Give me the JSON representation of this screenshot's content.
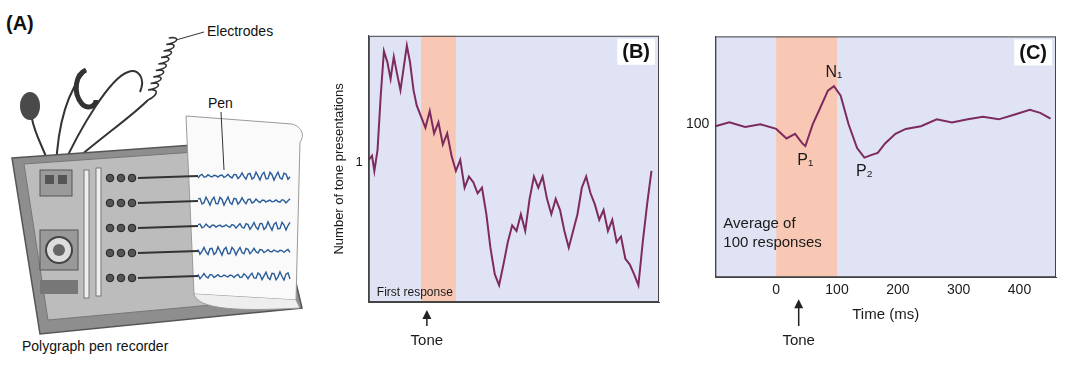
{
  "panel_a": {
    "letter": "(A)",
    "labels": {
      "electrodes": "Electrodes",
      "pen": "Pen"
    },
    "caption": "Polygraph pen recorder"
  },
  "chart_data": [
    {
      "panel": "(B)",
      "type": "line",
      "y_label": "Number of tone presentations",
      "x": [
        0,
        1.1,
        1.9,
        3,
        4.1,
        5.2,
        6.4,
        7.5,
        8.6,
        9.7,
        10.9,
        12,
        13.1,
        14.2,
        15.4,
        16.5,
        18,
        19.5,
        21,
        22.5,
        24,
        25.5,
        27,
        28.5,
        30,
        31.5,
        33,
        34.5,
        36,
        37.5,
        39,
        40.5,
        41.9,
        43.4,
        44.9,
        46.4,
        47.9,
        49.4,
        50.9,
        52.4,
        53.9,
        55.4,
        56.9,
        58.4,
        59.9,
        61.4,
        62.9,
        64.4,
        65.9,
        67.4,
        68.9,
        70.4,
        71.9,
        73.4,
        74.9,
        76.4,
        77.9,
        79.4,
        80.9,
        82.4,
        83.9,
        85.4,
        86.9,
        88.4,
        89.9,
        91.4,
        92.9,
        94.4,
        95.9,
        97.4
      ],
      "values": [
        1.02,
        1.05,
        0.94,
        1.09,
        1.48,
        1.8,
        1.72,
        1.6,
        1.76,
        1.64,
        1.52,
        1.68,
        1.84,
        1.72,
        1.52,
        1.41,
        1.33,
        1.25,
        1.37,
        1.21,
        1.29,
        1.13,
        1.21,
        1.05,
        0.94,
        1.02,
        0.82,
        0.9,
        0.86,
        0.78,
        0.82,
        0.63,
        0.39,
        0.2,
        0.12,
        0.27,
        0.43,
        0.55,
        0.51,
        0.63,
        0.51,
        0.74,
        0.9,
        0.82,
        0.9,
        0.74,
        0.63,
        0.74,
        0.66,
        0.51,
        0.39,
        0.51,
        0.63,
        0.82,
        0.9,
        0.78,
        0.7,
        0.59,
        0.66,
        0.51,
        0.59,
        0.43,
        0.47,
        0.31,
        0.27,
        0.2,
        0.12,
        0.43,
        0.7,
        0.94
      ],
      "color": "#7d2b5f",
      "xlim": [
        0,
        100
      ],
      "xticks": [],
      "ylim": [
        0,
        1.91
      ],
      "yticks": [
        1
      ],
      "tick_labels": "y",
      "grid": false,
      "note": [
        "First response"
      ],
      "shaded": [
        18,
        30
      ],
      "tone": {
        "label": "Tone",
        "at": 20
      }
    },
    {
      "panel": "(C)",
      "type": "line",
      "x_label": "Time (ms)",
      "x": [
        -100,
        -77,
        -51,
        -26,
        0,
        17,
        31,
        43,
        48,
        60,
        71,
        85,
        95,
        106,
        119,
        133,
        145,
        157,
        167,
        179,
        196,
        213,
        238,
        264,
        289,
        315,
        340,
        366,
        391,
        417,
        434,
        451
      ],
      "values": [
        99.5,
        100.5,
        99.3,
        100,
        98.8,
        96.3,
        97.5,
        95,
        94.3,
        100,
        103.8,
        108.8,
        110,
        107.5,
        100,
        93.8,
        91.3,
        92,
        92.5,
        95,
        97.5,
        98.8,
        99.5,
        101.3,
        100.5,
        101.3,
        102,
        101.3,
        102.5,
        103.8,
        103,
        101.5
      ],
      "color": "#7d2b5f",
      "xlim": [
        -100,
        460
      ],
      "xticks": [
        0,
        100,
        200,
        300,
        400
      ],
      "ylim": [
        60,
        123
      ],
      "yticks": [
        100
      ],
      "tick_labels": true,
      "grid": false,
      "note": [
        "Average of",
        "100 responses"
      ],
      "shaded": [
        0,
        100
      ],
      "tone": {
        "label": "Tone",
        "at": 37
      },
      "peaks": [
        {
          "label": "P₁",
          "x": 48,
          "y": 94.3
        },
        {
          "label": "N₁",
          "x": 95,
          "y": 110
        },
        {
          "label": "P₂",
          "x": 145,
          "y": 91.3
        }
      ]
    }
  ]
}
